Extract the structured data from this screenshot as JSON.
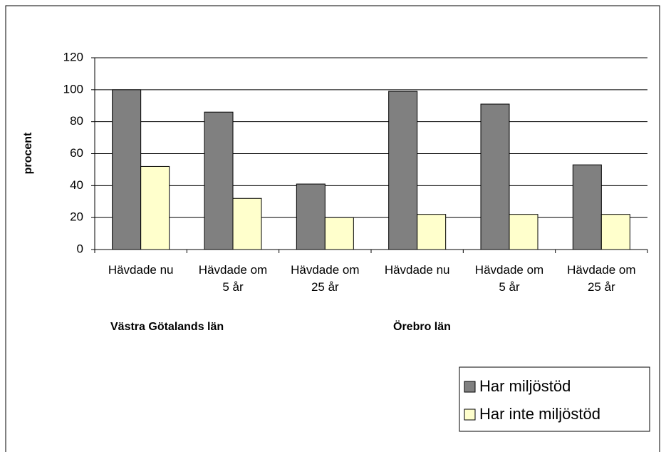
{
  "chart_data": {
    "type": "bar",
    "categories": [
      "Hävdade nu",
      "Hävdade om\n5 år",
      "Hävdade om\n25 år",
      "Hävdade nu",
      "Hävdade om\n5 år",
      "Hävdade om\n25 år"
    ],
    "group_labels": [
      "Västra Götalands län",
      "Örebro län"
    ],
    "y_label": "procent",
    "series": [
      {
        "name": "Har miljöstöd",
        "color": "#808080",
        "values": [
          100,
          86,
          41,
          99,
          91,
          53
        ]
      },
      {
        "name": "Har inte miljöstöd",
        "color": "#ffffcc",
        "values": [
          52,
          32,
          20,
          22,
          22,
          22
        ]
      }
    ],
    "ylim": [
      0,
      120
    ],
    "yticks": [
      0,
      20,
      40,
      60,
      80,
      100,
      120
    ],
    "grid": true
  }
}
